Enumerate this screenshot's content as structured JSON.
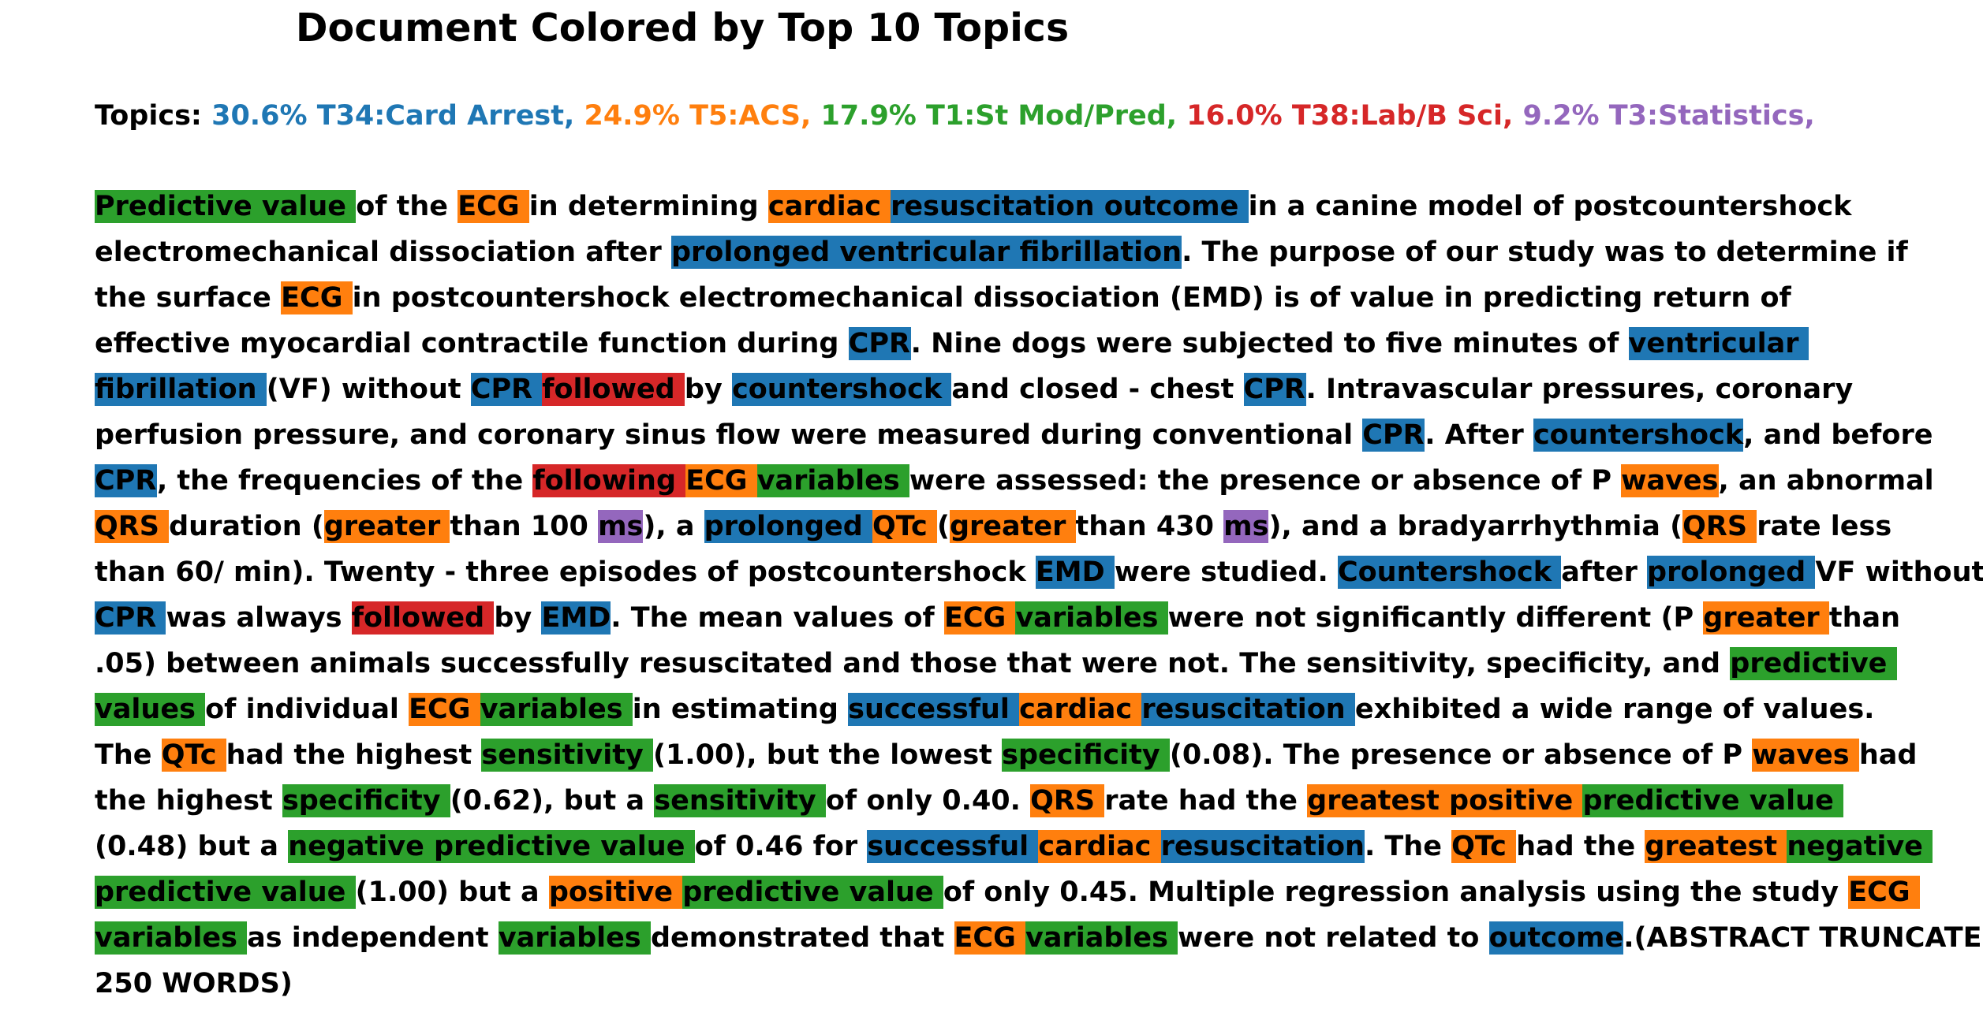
{
  "title": "Document Colored by Top 10 Topics",
  "legend": {
    "label": "Topics:",
    "items": [
      {
        "text": "30.6% T34:Card Arrest,",
        "color": "#1f77b4"
      },
      {
        "text": "24.9% T5:ACS,",
        "color": "#ff7f0e"
      },
      {
        "text": "17.9% T1:St Mod/Pred,",
        "color": "#2ca02c"
      },
      {
        "text": "16.0% T38:Lab/B Sci,",
        "color": "#d62728"
      },
      {
        "text": "9.2% T3:Statistics,",
        "color": "#9467bd"
      }
    ]
  },
  "topic_colors": {
    "blue": "#1f77b4",
    "orange": "#ff7f0e",
    "green": "#2ca02c",
    "red": "#d62728",
    "purple": "#9467bd"
  },
  "document_lines": [
    [
      [
        "Predictive value ",
        "green"
      ],
      [
        "of the ",
        ""
      ],
      [
        "ECG ",
        "orange"
      ],
      [
        "in determining ",
        ""
      ],
      [
        "cardiac ",
        "orange"
      ],
      [
        "resuscitation outcome ",
        "blue"
      ],
      [
        "in a canine model of postcountershock",
        ""
      ]
    ],
    [
      [
        "electromechanical dissociation after ",
        ""
      ],
      [
        "prolonged ventricular fibrillation",
        "blue"
      ],
      [
        ". The purpose of our study was to determine if",
        ""
      ]
    ],
    [
      [
        "the surface ",
        ""
      ],
      [
        "ECG ",
        "orange"
      ],
      [
        "in postcountershock electromechanical dissociation (EMD) is of value in predicting return of",
        ""
      ]
    ],
    [
      [
        "effective myocardial contractile function during ",
        ""
      ],
      [
        "CPR",
        "blue"
      ],
      [
        ". Nine dogs were subjected to five minutes of ",
        ""
      ],
      [
        "ventricular ",
        "blue"
      ]
    ],
    [
      [
        "fibrillation ",
        "blue"
      ],
      [
        "(VF) without ",
        ""
      ],
      [
        "CPR ",
        "blue"
      ],
      [
        "followed ",
        "red"
      ],
      [
        "by ",
        ""
      ],
      [
        "countershock ",
        "blue"
      ],
      [
        "and closed - chest ",
        ""
      ],
      [
        "CPR",
        "blue"
      ],
      [
        ". Intravascular pressures, coronary",
        ""
      ]
    ],
    [
      [
        "perfusion pressure, and coronary sinus flow were measured during conventional ",
        ""
      ],
      [
        "CPR",
        "blue"
      ],
      [
        ". After ",
        ""
      ],
      [
        "countershock",
        "blue"
      ],
      [
        ", and before",
        ""
      ]
    ],
    [
      [
        "CPR",
        "blue"
      ],
      [
        ", the frequencies of the ",
        ""
      ],
      [
        "following ",
        "red"
      ],
      [
        "ECG ",
        "orange"
      ],
      [
        "variables ",
        "green"
      ],
      [
        "were assessed: the presence or absence of P ",
        ""
      ],
      [
        "waves",
        "orange"
      ],
      [
        ", an abnormal",
        ""
      ]
    ],
    [
      [
        "QRS ",
        "orange"
      ],
      [
        "duration (",
        ""
      ],
      [
        "greater ",
        "orange"
      ],
      [
        "than 100 ",
        ""
      ],
      [
        "ms",
        "purple"
      ],
      [
        "), a ",
        ""
      ],
      [
        "prolonged ",
        "blue"
      ],
      [
        "QTc ",
        "orange"
      ],
      [
        "(",
        ""
      ],
      [
        "greater ",
        "orange"
      ],
      [
        "than 430 ",
        ""
      ],
      [
        "ms",
        "purple"
      ],
      [
        "), and a bradyarrhythmia (",
        ""
      ],
      [
        "QRS ",
        "orange"
      ],
      [
        "rate less",
        ""
      ]
    ],
    [
      [
        "than 60/ min). Twenty - three episodes of postcountershock ",
        ""
      ],
      [
        "EMD ",
        "blue"
      ],
      [
        "were studied. ",
        ""
      ],
      [
        "Countershock ",
        "blue"
      ],
      [
        "after ",
        ""
      ],
      [
        "prolonged ",
        "blue"
      ],
      [
        "VF without",
        ""
      ]
    ],
    [
      [
        "CPR ",
        "blue"
      ],
      [
        "was always ",
        ""
      ],
      [
        "followed ",
        "red"
      ],
      [
        "by ",
        ""
      ],
      [
        "EMD",
        "blue"
      ],
      [
        ". The mean values of ",
        ""
      ],
      [
        "ECG ",
        "orange"
      ],
      [
        "variables ",
        "green"
      ],
      [
        "were not significantly different (P ",
        ""
      ],
      [
        "greater ",
        "orange"
      ],
      [
        "than",
        ""
      ]
    ],
    [
      [
        ".05) between animals successfully resuscitated and those that were not. The sensitivity, specificity, and ",
        ""
      ],
      [
        "predictive ",
        "green"
      ]
    ],
    [
      [
        "values ",
        "green"
      ],
      [
        "of individual ",
        ""
      ],
      [
        "ECG ",
        "orange"
      ],
      [
        "variables ",
        "green"
      ],
      [
        "in estimating ",
        ""
      ],
      [
        "successful ",
        "blue"
      ],
      [
        "cardiac ",
        "orange"
      ],
      [
        "resuscitation ",
        "blue"
      ],
      [
        "exhibited a wide range of values.",
        ""
      ]
    ],
    [
      [
        "The ",
        ""
      ],
      [
        "QTc ",
        "orange"
      ],
      [
        "had the highest ",
        ""
      ],
      [
        "sensitivity ",
        "green"
      ],
      [
        "(1.00), but the lowest ",
        ""
      ],
      [
        "specificity ",
        "green"
      ],
      [
        "(0.08). The presence or absence of P ",
        ""
      ],
      [
        "waves ",
        "orange"
      ],
      [
        "had",
        ""
      ]
    ],
    [
      [
        "the highest ",
        ""
      ],
      [
        "specificity ",
        "green"
      ],
      [
        "(0.62), but a ",
        ""
      ],
      [
        "sensitivity ",
        "green"
      ],
      [
        "of only 0.40. ",
        ""
      ],
      [
        "QRS ",
        "orange"
      ],
      [
        "rate had the ",
        ""
      ],
      [
        "greatest positive ",
        "orange"
      ],
      [
        "predictive value ",
        "green"
      ]
    ],
    [
      [
        "(0.48) but a ",
        ""
      ],
      [
        "negative predictive value ",
        "green"
      ],
      [
        "of 0.46 for ",
        ""
      ],
      [
        "successful ",
        "blue"
      ],
      [
        "cardiac ",
        "orange"
      ],
      [
        "resuscitation",
        "blue"
      ],
      [
        ". The ",
        ""
      ],
      [
        "QTc ",
        "orange"
      ],
      [
        "had the ",
        ""
      ],
      [
        "greatest ",
        "orange"
      ],
      [
        "negative ",
        "green"
      ]
    ],
    [
      [
        "predictive value ",
        "green"
      ],
      [
        "(1.00) but a ",
        ""
      ],
      [
        "positive ",
        "orange"
      ],
      [
        "predictive value ",
        "green"
      ],
      [
        "of only 0.45. Multiple regression analysis using the study ",
        ""
      ],
      [
        "ECG ",
        "orange"
      ]
    ],
    [
      [
        "variables ",
        "green"
      ],
      [
        "as independent ",
        ""
      ],
      [
        "variables ",
        "green"
      ],
      [
        "demonstrated that ",
        ""
      ],
      [
        "ECG ",
        "orange"
      ],
      [
        "variables ",
        "green"
      ],
      [
        "were not related to ",
        ""
      ],
      [
        "outcome",
        "blue"
      ],
      [
        ".(ABSTRACT TRUNCATED AT",
        ""
      ]
    ],
    [
      [
        "250 WORDS)",
        ""
      ]
    ]
  ]
}
